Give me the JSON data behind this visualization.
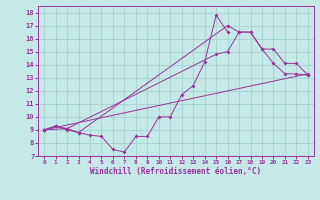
{
  "xlabel": "Windchill (Refroidissement éolien,°C)",
  "bg_color": "#c5e8e8",
  "line_color": "#993399",
  "grid_color": "#a0cccc",
  "xlim": [
    -0.5,
    23.5
  ],
  "ylim": [
    7,
    18.5
  ],
  "xticks": [
    0,
    1,
    2,
    3,
    4,
    5,
    6,
    7,
    8,
    9,
    10,
    11,
    12,
    13,
    14,
    15,
    16,
    17,
    18,
    19,
    20,
    21,
    22,
    23
  ],
  "yticks": [
    7,
    8,
    9,
    10,
    11,
    12,
    13,
    14,
    15,
    16,
    17,
    18
  ],
  "line1_x": [
    0,
    1,
    2,
    3,
    4,
    5,
    6,
    7,
    8,
    9,
    10,
    11,
    12,
    13,
    14,
    15,
    16
  ],
  "line1_y": [
    9.0,
    9.3,
    9.0,
    8.8,
    8.6,
    8.5,
    7.5,
    7.3,
    8.5,
    8.5,
    10.0,
    10.0,
    11.7,
    12.4,
    14.2,
    17.8,
    16.5
  ],
  "line2_x": [
    0,
    23
  ],
  "line2_y": [
    9.0,
    13.3
  ],
  "line3_x": [
    0,
    2,
    15,
    16,
    17,
    18,
    19,
    20,
    21,
    22,
    23
  ],
  "line3_y": [
    9.0,
    9.1,
    14.8,
    15.0,
    16.5,
    16.5,
    15.2,
    14.1,
    13.3,
    13.3,
    13.2
  ],
  "line4_x": [
    0,
    1,
    2,
    3,
    16,
    17,
    18,
    19,
    20,
    21,
    22,
    23
  ],
  "line4_y": [
    9.0,
    9.3,
    9.1,
    8.8,
    17.0,
    16.5,
    16.5,
    15.2,
    15.2,
    14.1,
    14.1,
    13.2
  ]
}
